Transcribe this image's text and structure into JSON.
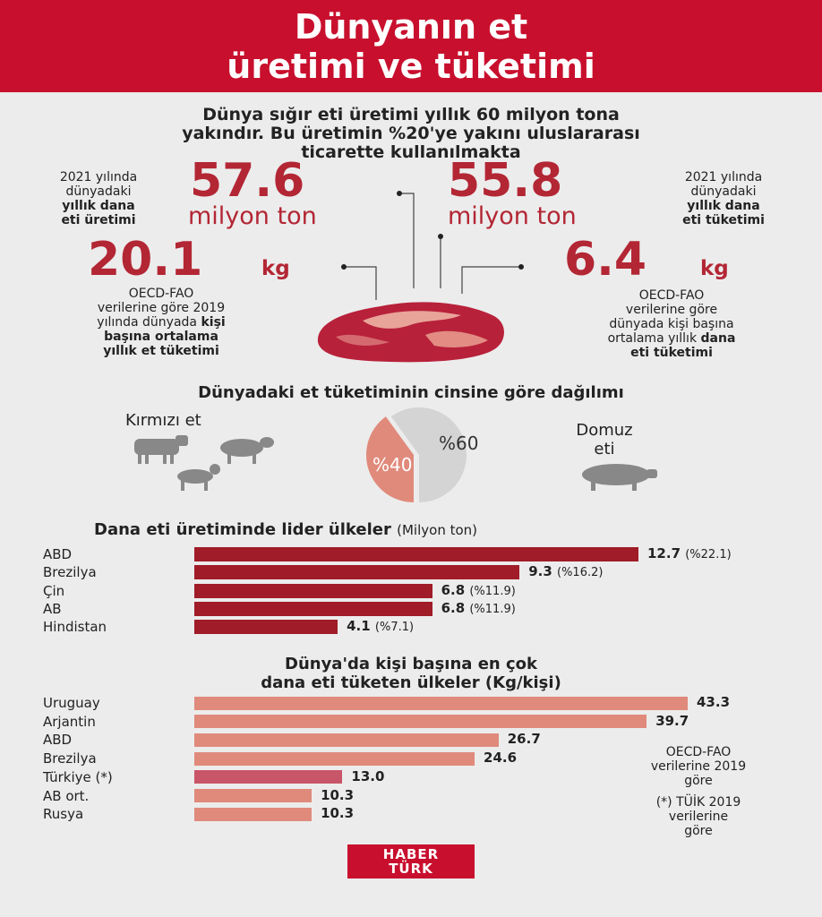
{
  "header": {
    "title_line1": "Dünyanın et",
    "title_line2": "üretimi ve tüketimi"
  },
  "intro": {
    "line1": "Dünya sığır eti üretimi yıllık 60 milyon tona",
    "line2": "yakındır. Bu üretimin %20'ye yakını uluslararası",
    "line3": "ticarette kullanılmakta"
  },
  "stats": {
    "production": {
      "value": "57.6",
      "unit": "milyon ton",
      "note1": "2021 yılında",
      "note2": "dünyadaki",
      "note3": "yıllık dana",
      "note4": "eti üretimi"
    },
    "consumption": {
      "value": "55.8",
      "unit": "milyon ton",
      "note1": "2021 yılında",
      "note2": "dünyadaki",
      "note3": "yıllık dana",
      "note4": "eti tüketimi"
    },
    "per_capita_meat": {
      "value": "20.1",
      "unit": "kg",
      "note1": "OECD-FAO",
      "note2": "verilerine göre 2019",
      "note3": "yılında dünyada ",
      "note3b": "kişi",
      "note4": "başına ortalama",
      "note5": "yıllık et tüketimi"
    },
    "per_capita_beef": {
      "value": "6.4",
      "unit": "kg",
      "note1": "OECD-FAO",
      "note2": "verilerine göre",
      "note3": "dünyada kişi başına",
      "note4": "ortalama yıllık ",
      "note4b": "dana",
      "note5": "eti tüketimi"
    }
  },
  "colors": {
    "header": "#c8102e",
    "accent": "#b32634",
    "bar_dark": "#a01c28",
    "bar_light": "#e08a7c",
    "bar_turkey": "#c95568",
    "pie_gray": "#d4d4d4",
    "pie_red": "#e08a7c"
  },
  "chart_data": [
    {
      "type": "pie",
      "title": "Dünyadaki et tüketiminin cinsine göre dağılımı",
      "slices": [
        {
          "name": "Kırmızı et",
          "label": "%40",
          "value": 40
        },
        {
          "name": "Domuz eti",
          "label": "%60",
          "value": 60
        }
      ],
      "legend_left": "Kırmızı et",
      "legend_right_1": "Domuz",
      "legend_right_2": "eti"
    },
    {
      "type": "bar",
      "title": "Dana eti üretiminde lider ülkeler",
      "unit": "(Milyon ton)",
      "categories": [
        "ABD",
        "Brezilya",
        "Çin",
        "AB",
        "Hindistan"
      ],
      "values": [
        12.7,
        9.3,
        6.8,
        6.8,
        4.1
      ],
      "value_labels": [
        "12.7",
        "9.3",
        "6.8",
        "6.8",
        "4.1"
      ],
      "shares": [
        "(%22.1)",
        "(%16.2)",
        "(%11.9)",
        "(%11.9)",
        "(%7.1)"
      ]
    },
    {
      "type": "bar",
      "title_line1": "Dünya'da kişi başına en çok",
      "title_line2": "dana eti tüketen ülkeler (Kg/kişi)",
      "categories": [
        "Uruguay",
        "Arjantin",
        "ABD",
        "Brezilya",
        "Türkiye (*)",
        "AB ort.",
        "Rusya"
      ],
      "values": [
        43.3,
        39.7,
        26.7,
        24.6,
        13.0,
        10.3,
        10.3
      ],
      "value_labels": [
        "43.3",
        "39.7",
        "26.7",
        "24.6",
        "13.0",
        "10.3",
        "10.3"
      ],
      "source1": "OECD-FAO",
      "source2": "verilerine 2019",
      "source3": "göre",
      "footnote1": "(*) TÜİK 2019",
      "footnote2": "verilerine",
      "footnote3": "göre"
    }
  ],
  "logo": {
    "line1": "HABER",
    "line2": "TÜRK"
  }
}
